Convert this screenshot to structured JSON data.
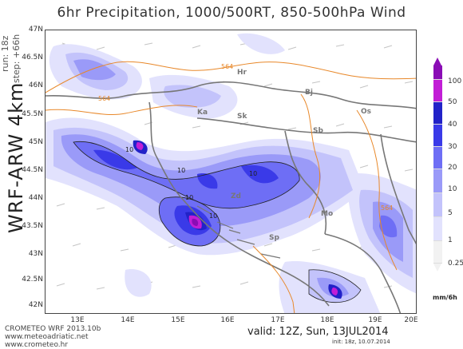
{
  "header": {
    "title": "6hr Precipitation, 1000/500RT, 850-500hPa Wind",
    "run": "run: 18z",
    "step": "step: +66h",
    "model": "WRF-ARW 4km"
  },
  "axes": {
    "latitudes": [
      "47N",
      "46.5N",
      "46N",
      "45.5N",
      "45N",
      "44.5N",
      "44N",
      "43.5N",
      "43N",
      "42.5N",
      "42N"
    ],
    "longitudes": [
      "13E",
      "14E",
      "15E",
      "16E",
      "17E",
      "18E",
      "19E",
      "20E"
    ]
  },
  "legend": {
    "unit": "mm/6h",
    "levels": [
      "100",
      "50",
      "40",
      "30",
      "20",
      "10",
      "5",
      "1",
      "0.25"
    ],
    "colors": [
      "#8a0cb5",
      "#c21ed6",
      "#2222c8",
      "#3a3ae8",
      "#6e6ef5",
      "#9a9af8",
      "#c3c3fb",
      "#e2e2fd",
      "#f2f2f2"
    ]
  },
  "map": {
    "thickness_label": "564",
    "precip_contour_label": "10",
    "country_labels": [
      "Hr",
      "Bj",
      "Ka",
      "Sk",
      "Sb",
      "Os",
      "Zd",
      "Sp",
      "Mo"
    ],
    "colors": {
      "thickness": "#e8882a",
      "border": "#777777",
      "wind": "#c4c4c4"
    }
  },
  "footer": {
    "credit_lines": [
      "CROMETEO WRF 2013.10b",
      "www.meteoadriatic.net",
      "www.crometeo.hr"
    ],
    "valid": "valid: 12Z, Sun, 13JUL2014",
    "init": "init: 18z, 10.07.2014"
  }
}
